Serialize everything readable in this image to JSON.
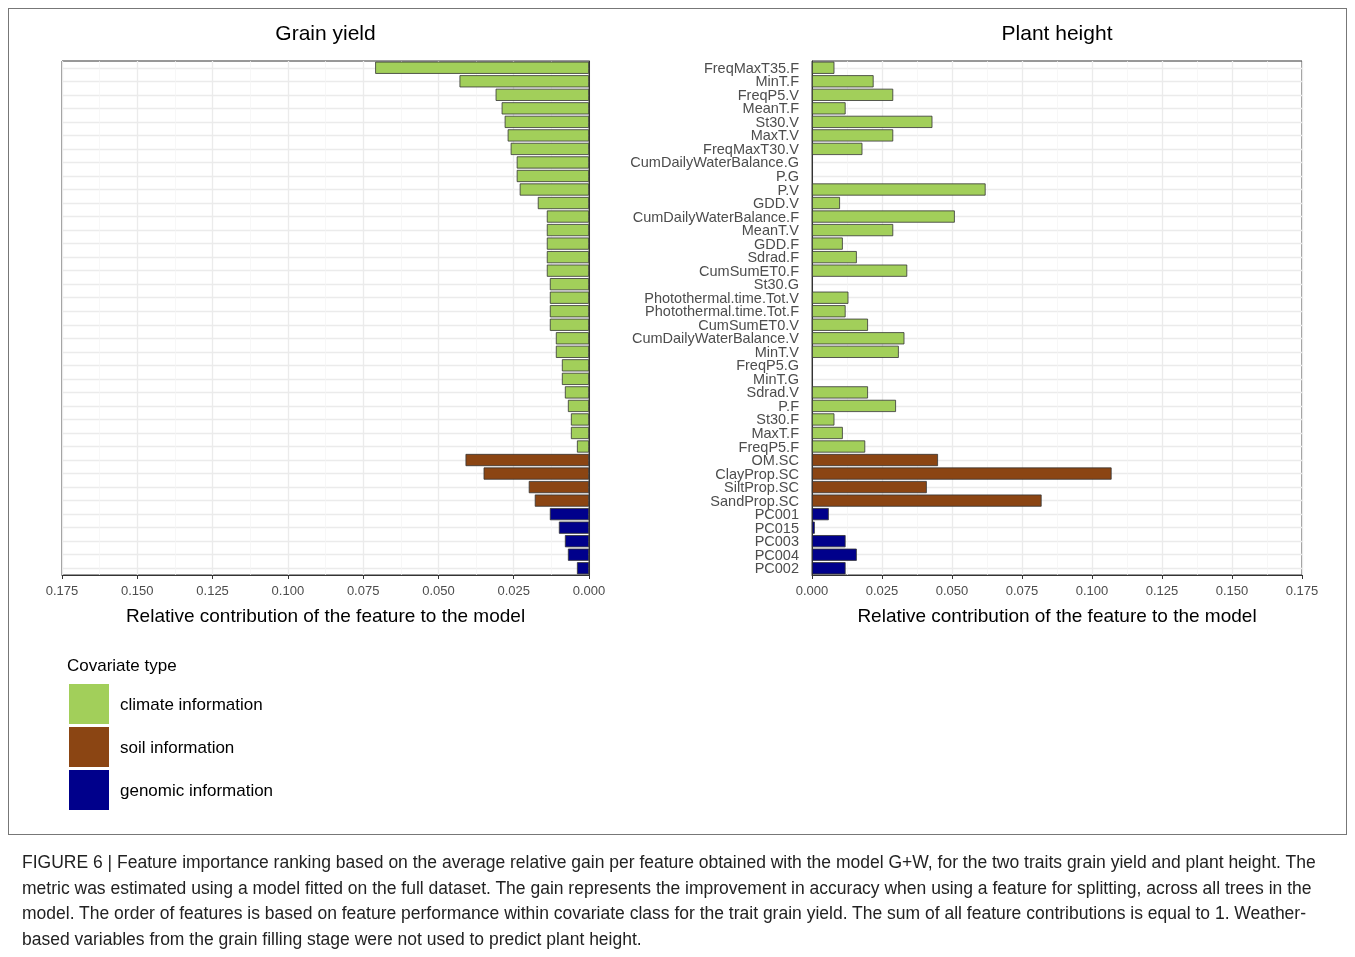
{
  "chart_data": [
    {
      "type": "bar",
      "title": "Grain yield",
      "xlabel": "Relative contribution of the feature to the model",
      "orientation": "horizontal",
      "categories": [
        null,
        null,
        null,
        null,
        null,
        null,
        null,
        null,
        null,
        null,
        null,
        null,
        null,
        null,
        null,
        null,
        null,
        null,
        null,
        null,
        null,
        null,
        null,
        null,
        null,
        null,
        null,
        null,
        null,
        null,
        null,
        null,
        null,
        null,
        null,
        null,
        null,
        null
      ],
      "series": [
        {
          "name": "climate information",
          "color": "#a2cf5a",
          "values": [
            0.071,
            0.043,
            0.031,
            0.029,
            0.028,
            0.027,
            0.026,
            0.024,
            0.024,
            0.023,
            0.017,
            0.014,
            0.014,
            0.014,
            0.014,
            0.014,
            0.013,
            0.013,
            0.013,
            0.013,
            0.011,
            0.011,
            0.009,
            0.009,
            0.008,
            0.007,
            0.006,
            0.006,
            0.004,
            null,
            null,
            null,
            null,
            null,
            null,
            null,
            null,
            null
          ]
        },
        {
          "name": "soil information",
          "color": "#8b4513",
          "values": [
            null,
            null,
            null,
            null,
            null,
            null,
            null,
            null,
            null,
            null,
            null,
            null,
            null,
            null,
            null,
            null,
            null,
            null,
            null,
            null,
            null,
            null,
            null,
            null,
            null,
            null,
            null,
            null,
            null,
            0.041,
            0.035,
            0.02,
            0.018,
            null,
            null,
            null,
            null,
            null
          ]
        },
        {
          "name": "genomic information",
          "color": "#00008b",
          "values": [
            null,
            null,
            null,
            null,
            null,
            null,
            null,
            null,
            null,
            null,
            null,
            null,
            null,
            null,
            null,
            null,
            null,
            null,
            null,
            null,
            null,
            null,
            null,
            null,
            null,
            null,
            null,
            null,
            null,
            null,
            null,
            null,
            null,
            0.013,
            0.01,
            0.008,
            0.007,
            0.004
          ]
        }
      ],
      "xlim": [
        0.175,
        0
      ],
      "xticks": [
        0.175,
        {
          "value": 0.15,
          "label": "0.150"
        },
        0.125,
        {
          "value": 0.1,
          "label": "0.100"
        },
        0.075,
        {
          "value": 0.05,
          "label": "0.050"
        },
        0.025,
        {
          "value": 0,
          "label": "0.000"
        }
      ],
      "grid": true,
      "legend": "bottom left",
      "legend_title": "Covariate type",
      "tick_labels": "x",
      "annotations": [
        "FIGURE 6 | Feature importance ranking based on the average relative gain per feature obtained with the model G+W, for the two traits grain yield and plant height. The metric was estimated using a model fitted on the full dataset. The gain represents the improvement in accuracy when using a feature for splitting, across all trees in the model. The order of features is based on feature performance within covariate class for the trait grain yield. The sum of all feature contributions is equal to 1. Weather-based variables from the grain filling stage were not used to predict plant height."
      ]
    },
    {
      "type": "bar",
      "title": "Plant height",
      "xlabel": "Relative contribution of the feature to the model",
      "orientation": "horizontal",
      "categories": [
        "FreqMaxT35.F",
        "MinT.F",
        "FreqP5.V",
        "MeanT.F",
        "St30.V",
        "MaxT.V",
        "FreqMaxT30.V",
        "CumDailyWaterBalance.G",
        "P.G",
        "P.V",
        "GDD.V",
        "CumDailyWaterBalance.F",
        "MeanT.V",
        "GDD.F",
        "Sdrad.F",
        "CumSumET0.F",
        "St30.G",
        "Photothermal.time.Tot.V",
        "Photothermal.time.Tot.F",
        "CumSumET0.V",
        "CumDailyWaterBalance.V",
        "MinT.V",
        "FreqP5.G",
        "MinT.G",
        "Sdrad.V",
        "P.F",
        "St30.F",
        "MaxT.F",
        "FreqP5.F",
        "OM.SC",
        "ClayProp.SC",
        "SiltProp.SC",
        "SandProp.SC",
        "PC001",
        "PC015",
        "PC003",
        "PC004",
        "PC002"
      ],
      "series": [
        {
          "color": "#a2cf5a",
          "values": [
            0.008,
            0.022,
            0.029,
            0.012,
            0.043,
            0.029,
            0.018,
            null,
            null,
            0.062,
            0.01,
            0.051,
            0.029,
            0.011,
            0.016,
            0.034,
            null,
            0.013,
            0.012,
            0.02,
            0.033,
            0.031,
            null,
            null,
            0.02,
            0.03,
            0.008,
            0.011,
            0.019,
            null,
            null,
            null,
            null,
            null,
            null,
            null,
            null,
            null
          ]
        },
        {
          "color": "#8b4513",
          "values": [
            null,
            null,
            null,
            null,
            null,
            null,
            null,
            null,
            null,
            null,
            null,
            null,
            null,
            null,
            null,
            null,
            null,
            null,
            null,
            null,
            null,
            null,
            null,
            null,
            null,
            null,
            null,
            null,
            null,
            0.045,
            0.107,
            0.041,
            0.082,
            null,
            null,
            null,
            null,
            null
          ]
        },
        {
          "color": "#00008b",
          "values": [
            null,
            null,
            null,
            null,
            null,
            null,
            null,
            null,
            null,
            null,
            null,
            null,
            null,
            null,
            null,
            null,
            null,
            null,
            null,
            null,
            null,
            null,
            null,
            null,
            null,
            null,
            null,
            null,
            null,
            null,
            null,
            null,
            null,
            0.006,
            0.001,
            0.012,
            0.016,
            0.012
          ]
        }
      ],
      "xlim": [
        0,
        0.175
      ],
      "xticks": [
        {
          "value": 0,
          "label": "0.000"
        },
        0.025,
        {
          "value": 0.05,
          "label": "0.050"
        },
        0.075,
        {
          "value": 0.1,
          "label": "0.100"
        },
        0.125,
        {
          "value": 0.15,
          "label": "0.150"
        },
        0.175
      ],
      "grid": true
    }
  ]
}
